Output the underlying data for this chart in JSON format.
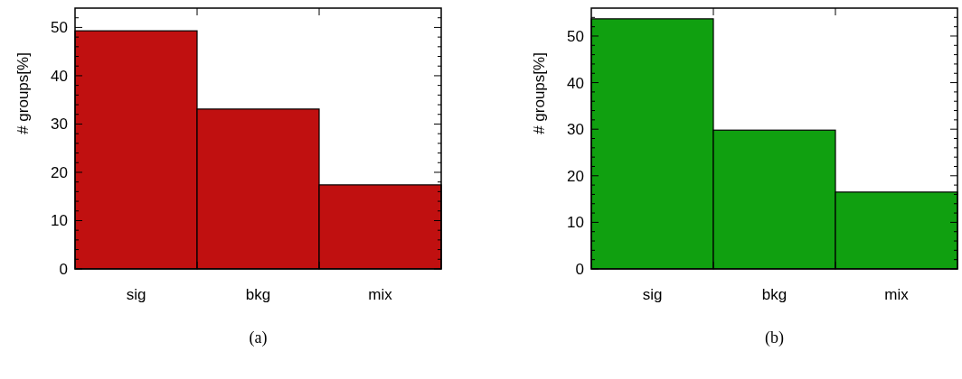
{
  "chart_data": [
    {
      "type": "bar",
      "categories": [
        "sig",
        "bkg",
        "mix"
      ],
      "values": [
        49.3,
        33.1,
        17.4
      ],
      "color": "#c01010",
      "ylabel": "# groups[%]",
      "ylim": [
        0,
        54
      ],
      "yticks": [
        0,
        {
          "value": 2,
          "label": null
        },
        {
          "value": 4,
          "label": null
        },
        {
          "value": 6,
          "label": null
        },
        {
          "value": 8,
          "label": null
        },
        10,
        {
          "value": 12,
          "label": null
        },
        {
          "value": 14,
          "label": null
        },
        {
          "value": 16,
          "label": null
        },
        {
          "value": 18,
          "label": null
        },
        20,
        {
          "value": 22,
          "label": null
        },
        {
          "value": 24,
          "label": null
        },
        {
          "value": 26,
          "label": null
        },
        {
          "value": 28,
          "label": null
        },
        30,
        {
          "value": 32,
          "label": null
        },
        {
          "value": 34,
          "label": null
        },
        {
          "value": 36,
          "label": null
        },
        {
          "value": 38,
          "label": null
        },
        40,
        {
          "value": 42,
          "label": null
        },
        {
          "value": 44,
          "label": null
        },
        {
          "value": 46,
          "label": null
        },
        {
          "value": 48,
          "label": null
        },
        50,
        {
          "value": 52,
          "label": null
        }
      ],
      "grid": false,
      "annotations": [
        "(a)"
      ]
    },
    {
      "type": "bar",
      "categories": [
        "sig",
        "bkg",
        "mix"
      ],
      "values": [
        53.7,
        29.8,
        16.5
      ],
      "color": "#10a010",
      "ylabel": "# groups[%]",
      "ylim": [
        0,
        56
      ],
      "yticks": [
        0,
        {
          "value": 2,
          "label": null
        },
        {
          "value": 4,
          "label": null
        },
        {
          "value": 6,
          "label": null
        },
        {
          "value": 8,
          "label": null
        },
        10,
        {
          "value": 12,
          "label": null
        },
        {
          "value": 14,
          "label": null
        },
        {
          "value": 16,
          "label": null
        },
        {
          "value": 18,
          "label": null
        },
        20,
        {
          "value": 22,
          "label": null
        },
        {
          "value": 24,
          "label": null
        },
        {
          "value": 26,
          "label": null
        },
        {
          "value": 28,
          "label": null
        },
        30,
        {
          "value": 32,
          "label": null
        },
        {
          "value": 34,
          "label": null
        },
        {
          "value": 36,
          "label": null
        },
        {
          "value": 38,
          "label": null
        },
        40,
        {
          "value": 42,
          "label": null
        },
        {
          "value": 44,
          "label": null
        },
        {
          "value": 46,
          "label": null
        },
        {
          "value": 48,
          "label": null
        },
        50,
        {
          "value": 52,
          "label": null
        },
        {
          "value": 54,
          "label": null
        }
      ],
      "grid": false,
      "annotations": [
        "(b)"
      ]
    }
  ]
}
